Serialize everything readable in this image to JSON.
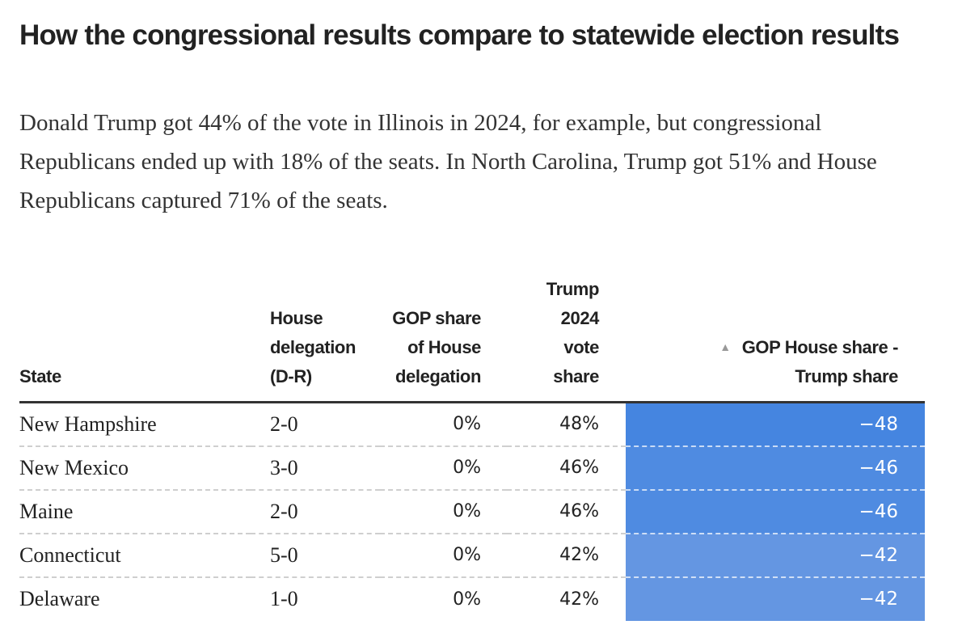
{
  "header": {
    "title": "How the congressional results compare to statewide election results",
    "subtitle": "Donald Trump got 44% of the vote in Illinois in 2024, for example, but congressional Republicans ended up with 18% of the seats. In North Carolina, Trump got 51% and House Republicans captured 71% of the seats."
  },
  "columns": {
    "state": [
      "State"
    ],
    "delegation": [
      "House",
      "delegation",
      "(D-R)"
    ],
    "gop_share": [
      "GOP share",
      "of House",
      "delegation"
    ],
    "trump_share": [
      "Trump",
      "2024",
      "vote",
      "share"
    ],
    "diff": [
      "GOP House share -",
      "Trump share"
    ],
    "sort_icon": "triangle-up-icon"
  },
  "colors": {
    "diff_strong": "#4585E0",
    "diff_light": "#6496E2"
  },
  "chart_data": {
    "type": "table",
    "title": "How the congressional results compare to statewide election results",
    "sorted_by": "GOP House share - Trump share",
    "sort_direction": "ascending",
    "rows": [
      {
        "state": "New Hampshire",
        "delegation": "2-0",
        "gop_share": "0%",
        "trump_share": "48%",
        "diff": "−48",
        "diff_value": -48
      },
      {
        "state": "New Mexico",
        "delegation": "3-0",
        "gop_share": "0%",
        "trump_share": "46%",
        "diff": "−46",
        "diff_value": -46
      },
      {
        "state": "Maine",
        "delegation": "2-0",
        "gop_share": "0%",
        "trump_share": "46%",
        "diff": "−46",
        "diff_value": -46
      },
      {
        "state": "Connecticut",
        "delegation": "5-0",
        "gop_share": "0%",
        "trump_share": "42%",
        "diff": "−42",
        "diff_value": -42
      },
      {
        "state": "Delaware",
        "delegation": "1-0",
        "gop_share": "0%",
        "trump_share": "42%",
        "diff": "−42",
        "diff_value": -42
      }
    ]
  }
}
